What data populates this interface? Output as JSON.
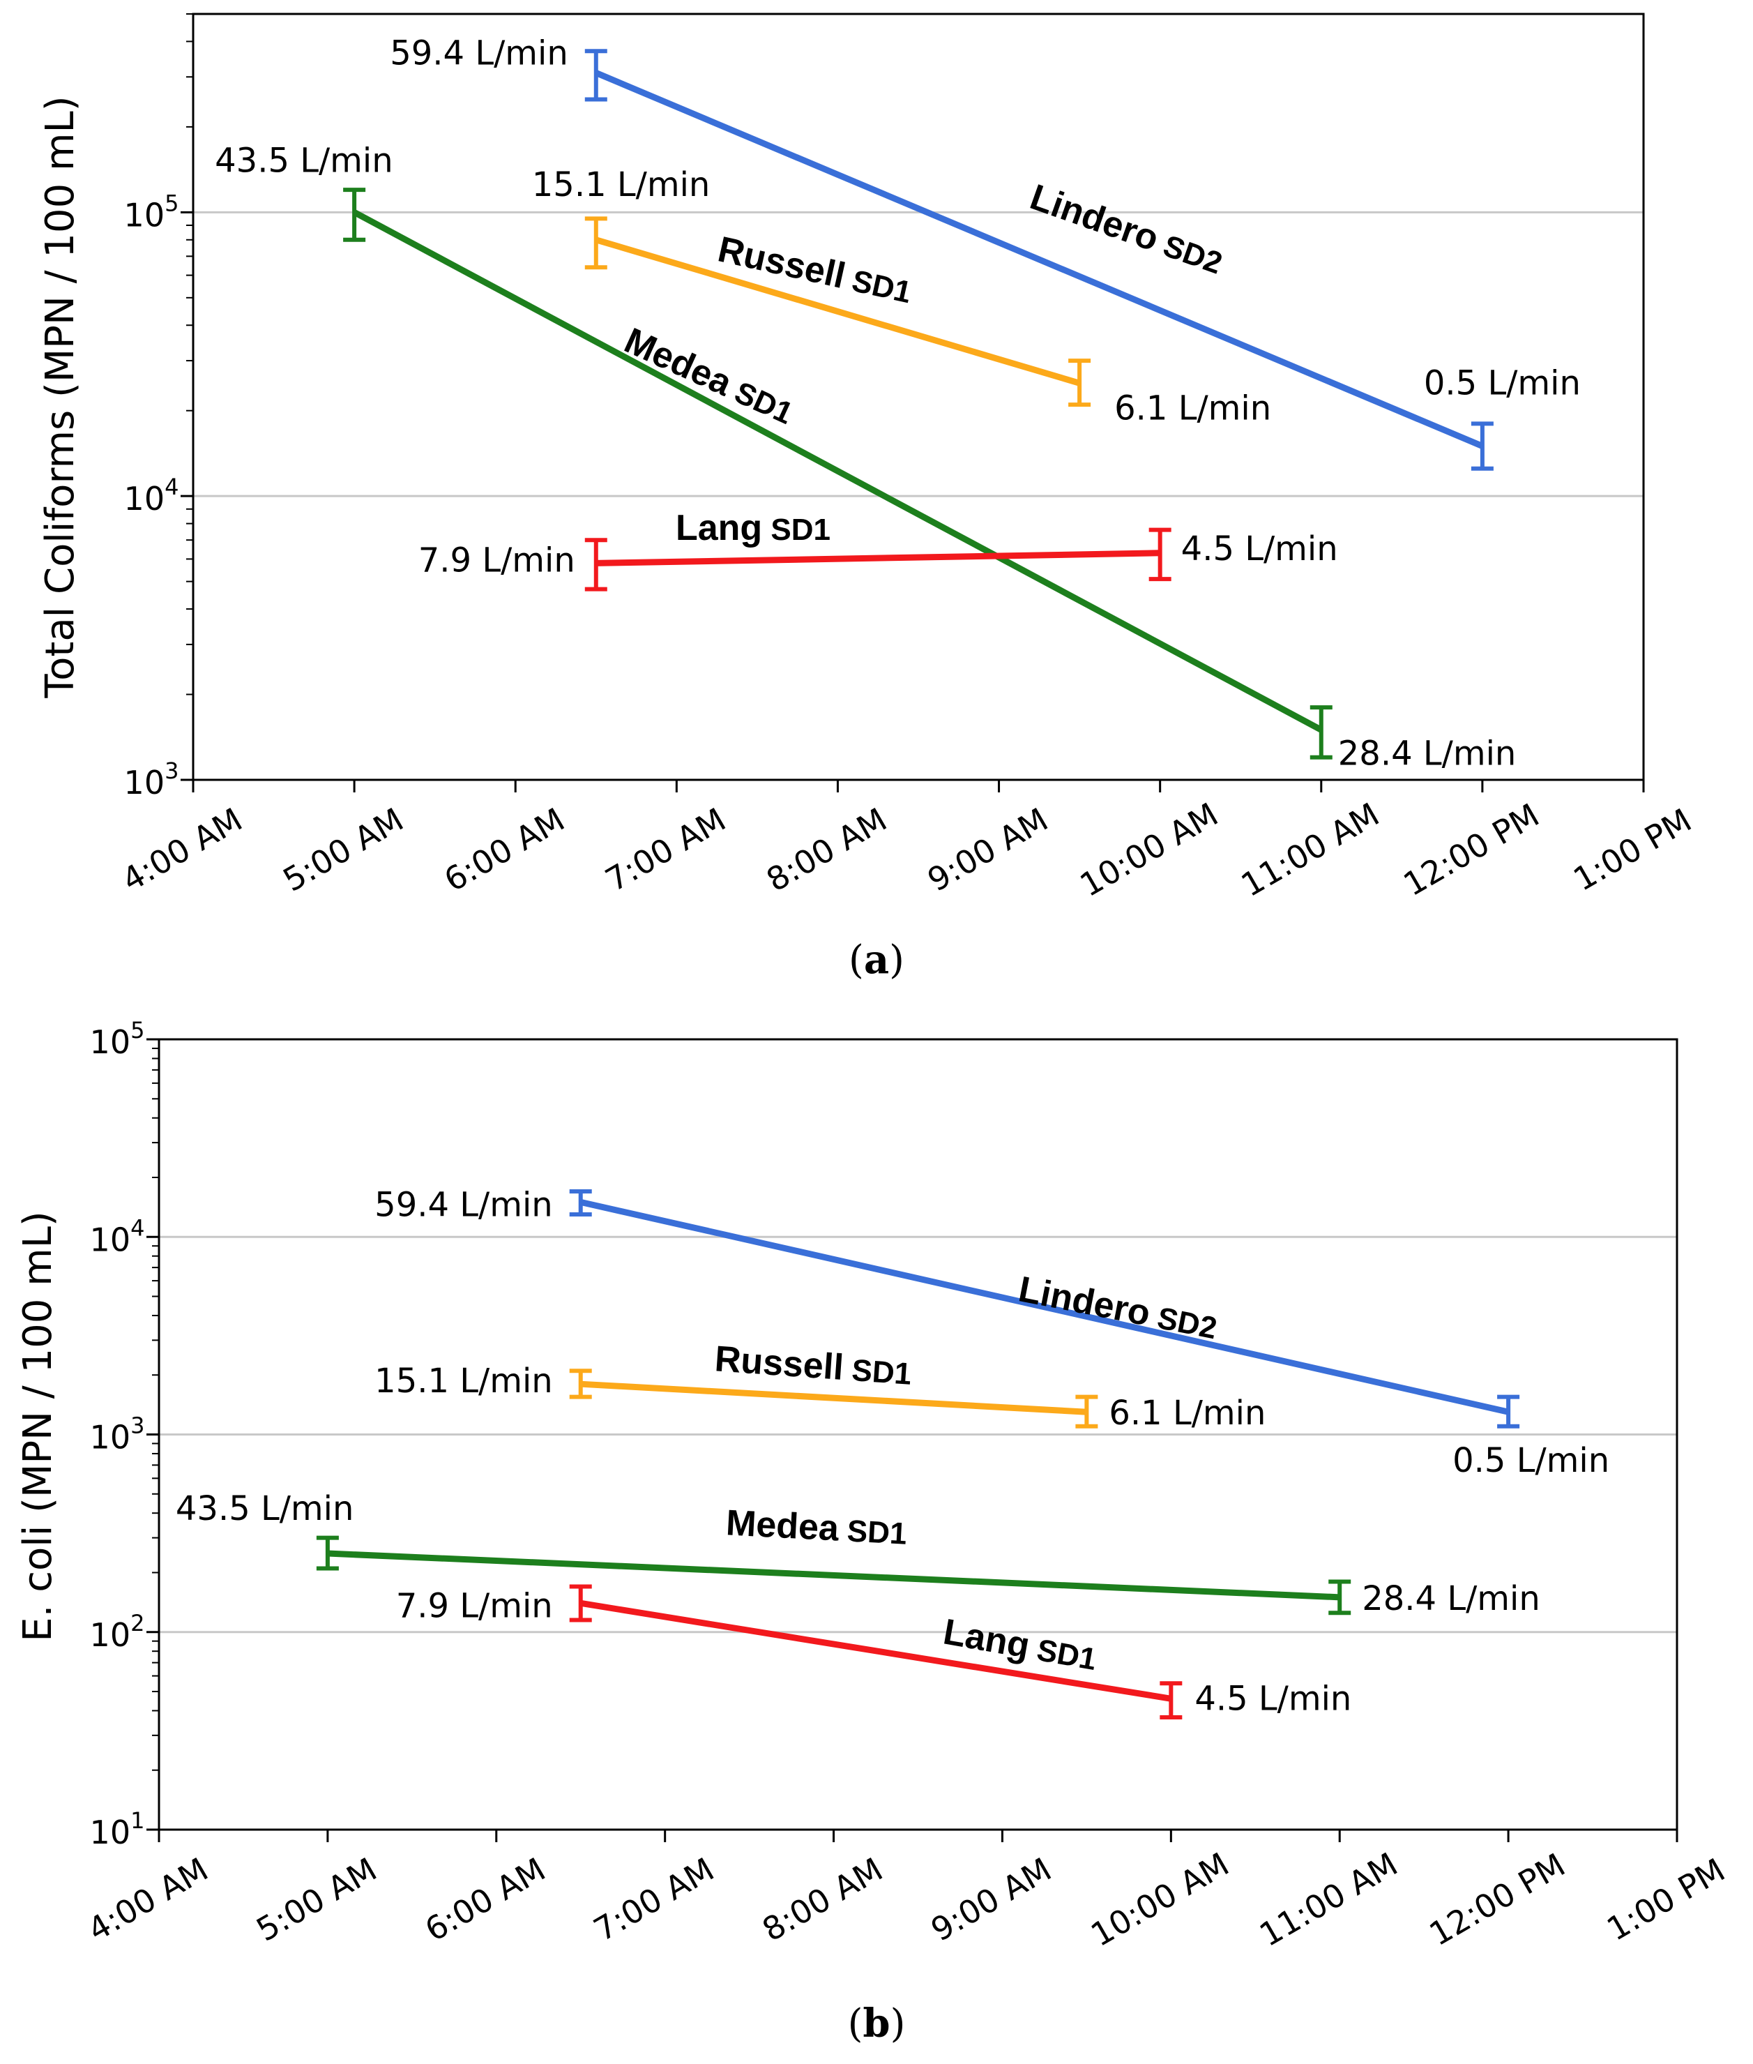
{
  "chart_data": [
    {
      "type": "line",
      "panel": "(a)",
      "panel_label_parts": [
        "(",
        "a",
        ")"
      ],
      "ylabel": "Total Coliforms (MPN / 100 mL)",
      "yscale": "log",
      "ylim": [
        1000,
        500000
      ],
      "yticks": [
        {
          "value": 1000,
          "base": "10",
          "exp": "3"
        },
        {
          "value": 10000,
          "base": "10",
          "exp": "4"
        },
        {
          "value": 100000,
          "base": "10",
          "exp": "5"
        }
      ],
      "grid": "horizontal at major ticks",
      "xlim": [
        "4:00 AM",
        "1:00 PM"
      ],
      "xtick_labels": [
        "4:00 AM",
        "5:00 AM",
        "6:00 AM",
        "7:00 AM",
        "8:00 AM",
        "9:00 AM",
        "10:00 AM",
        "11:00 AM",
        "12:00 PM",
        "1:00 PM"
      ],
      "series": [
        {
          "name_main": "Lindero",
          "name_sub": "SD2",
          "color": "#3a6fd8",
          "x": [
            "6:30 AM",
            "12:00 PM"
          ],
          "y": [
            310000,
            15000
          ],
          "err_low": [
            250000,
            12500
          ],
          "err_high": [
            370000,
            18000
          ],
          "point_labels": [
            "59.4 L/min",
            "0.5 L/min"
          ]
        },
        {
          "name_main": "Russell",
          "name_sub": "SD1",
          "color": "#fca91a",
          "x": [
            "6:30 AM",
            "9:30 AM"
          ],
          "y": [
            80000,
            25000
          ],
          "err_low": [
            64000,
            21000
          ],
          "err_high": [
            95000,
            30000
          ],
          "point_labels": [
            "15.1 L/min",
            "6.1 L/min"
          ]
        },
        {
          "name_main": "Medea",
          "name_sub": "SD1",
          "color": "#1d7f1d",
          "x": [
            "5:00 AM",
            "11:00 AM"
          ],
          "y": [
            100000,
            1500
          ],
          "err_low": [
            80000,
            1200
          ],
          "err_high": [
            120000,
            1800
          ],
          "point_labels": [
            "43.5 L/min",
            "28.4 L/min"
          ]
        },
        {
          "name_main": "Lang",
          "name_sub": "SD1",
          "color": "#f2191d",
          "x": [
            "6:30 AM",
            "10:00 AM"
          ],
          "y": [
            5800,
            6300
          ],
          "err_low": [
            4700,
            5100
          ],
          "err_high": [
            7000,
            7600
          ],
          "point_labels": [
            "7.9 L/min",
            "4.5 L/min"
          ]
        }
      ]
    },
    {
      "type": "line",
      "panel": "(b)",
      "panel_label_parts": [
        "(",
        "b",
        ")"
      ],
      "ylabel": "E. coli (MPN / 100 mL)",
      "yscale": "log",
      "ylim": [
        10,
        100000
      ],
      "yticks": [
        {
          "value": 10,
          "base": "10",
          "exp": "1"
        },
        {
          "value": 100,
          "base": "10",
          "exp": "2"
        },
        {
          "value": 1000,
          "base": "10",
          "exp": "3"
        },
        {
          "value": 10000,
          "base": "10",
          "exp": "4"
        },
        {
          "value": 100000,
          "base": "10",
          "exp": "5"
        }
      ],
      "grid": "horizontal at major ticks",
      "xlim": [
        "4:00 AM",
        "1:00 PM"
      ],
      "xtick_labels": [
        "4:00 AM",
        "5:00 AM",
        "6:00 AM",
        "7:00 AM",
        "8:00 AM",
        "9:00 AM",
        "10:00 AM",
        "11:00 AM",
        "12:00 PM",
        "1:00 PM"
      ],
      "series": [
        {
          "name_main": "Lindero",
          "name_sub": "SD2",
          "color": "#3a6fd8",
          "x": [
            "6:30 AM",
            "12:00 PM"
          ],
          "y": [
            15000,
            1300
          ],
          "err_low": [
            13000,
            1100
          ],
          "err_high": [
            17000,
            1550
          ],
          "point_labels": [
            "59.4 L/min",
            "0.5 L/min"
          ]
        },
        {
          "name_main": "Russell",
          "name_sub": "SD1",
          "color": "#fca91a",
          "x": [
            "6:30 AM",
            "9:30 AM"
          ],
          "y": [
            1800,
            1300
          ],
          "err_low": [
            1550,
            1100
          ],
          "err_high": [
            2100,
            1550
          ],
          "point_labels": [
            "15.1 L/min",
            "6.1 L/min"
          ]
        },
        {
          "name_main": "Medea",
          "name_sub": "SD1",
          "color": "#1d7f1d",
          "x": [
            "5:00 AM",
            "11:00 AM"
          ],
          "y": [
            250,
            150
          ],
          "err_low": [
            210,
            125
          ],
          "err_high": [
            300,
            180
          ],
          "point_labels": [
            "43.5 L/min",
            "28.4 L/min"
          ]
        },
        {
          "name_main": "Lang",
          "name_sub": "SD1",
          "color": "#f2191d",
          "x": [
            "6:30 AM",
            "10:00 AM"
          ],
          "y": [
            140,
            46
          ],
          "err_low": [
            115,
            37
          ],
          "err_high": [
            170,
            55
          ],
          "point_labels": [
            "7.9 L/min",
            "4.5 L/min"
          ]
        }
      ]
    }
  ]
}
